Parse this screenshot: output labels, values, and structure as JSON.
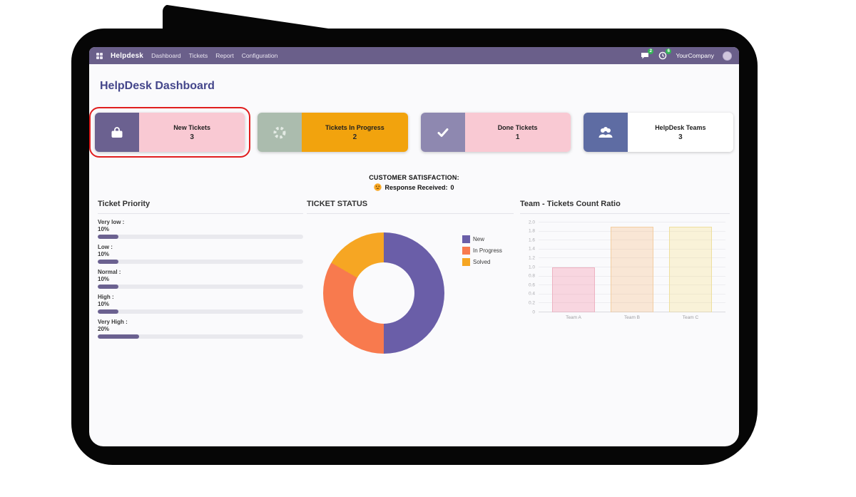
{
  "navbar": {
    "brand": "Helpdesk",
    "menu": [
      "Dashboard",
      "Tickets",
      "Report",
      "Configuration"
    ],
    "messages_badge": "2",
    "activity_badge": "6",
    "company": "YourCompany"
  },
  "page": {
    "title": "HelpDesk Dashboard"
  },
  "kpi_cards": [
    {
      "label": "New Tickets",
      "value": "3",
      "icon": "briefcase-icon",
      "icon_bg": "#6b6190",
      "body_bg": "#f9c9d3",
      "highlighted": true
    },
    {
      "label": "Tickets In Progress",
      "value": "2",
      "icon": "gear-spinner-icon",
      "icon_bg": "#abbcae",
      "body_bg": "#f2a30d",
      "highlighted": false
    },
    {
      "label": "Done Tickets",
      "value": "1",
      "icon": "check-icon",
      "icon_bg": "#8e88b0",
      "body_bg": "#f9c9d3",
      "highlighted": false
    },
    {
      "label": "HelpDesk Teams",
      "value": "3",
      "icon": "users-icon",
      "icon_bg": "#5e6ca3",
      "body_bg": "#ffffff",
      "highlighted": false
    }
  ],
  "satisfaction": {
    "title": "CUSTOMER SATISFACTION:",
    "icon": "smiley-icon",
    "label": "Response Received:",
    "value": "0"
  },
  "chart_data": [
    {
      "type": "bar",
      "orientation": "horizontal",
      "title": "Ticket Priority",
      "categories": [
        "Very low :",
        "Low :",
        "Normal :",
        "High :",
        "Very High :"
      ],
      "values": [
        10,
        10,
        10,
        10,
        20
      ],
      "value_labels": [
        "10%",
        "10%",
        "10%",
        "10%",
        "20%"
      ],
      "xlim": [
        0,
        100
      ],
      "bar_color": "#6b6190",
      "track_color": "#e9e9ee",
      "grid": false
    },
    {
      "type": "pie",
      "subtype": "donut",
      "title": "TICKET STATUS",
      "labels": [
        "New",
        "In Progress",
        "Solved"
      ],
      "values": [
        3,
        2,
        1
      ],
      "colors": [
        "#6a5ea8",
        "#f87a4e",
        "#f6a623"
      ],
      "legend_position": "right"
    },
    {
      "type": "bar",
      "title": "Team - Tickets Count Ratio",
      "categories": [
        "Team A",
        "Team B",
        "Team C"
      ],
      "values": [
        1.0,
        1.9,
        1.9
      ],
      "ylim": [
        0,
        2.0
      ],
      "ytick_step": 0.2,
      "grid": true,
      "bar_fills": [
        "rgba(244,132,160,0.30)",
        "rgba(246,173,100,0.26)",
        "rgba(247,216,90,0.22)"
      ],
      "bar_borders": [
        "#eeb2c2",
        "#f3cda0",
        "#eedf9e"
      ]
    }
  ]
}
